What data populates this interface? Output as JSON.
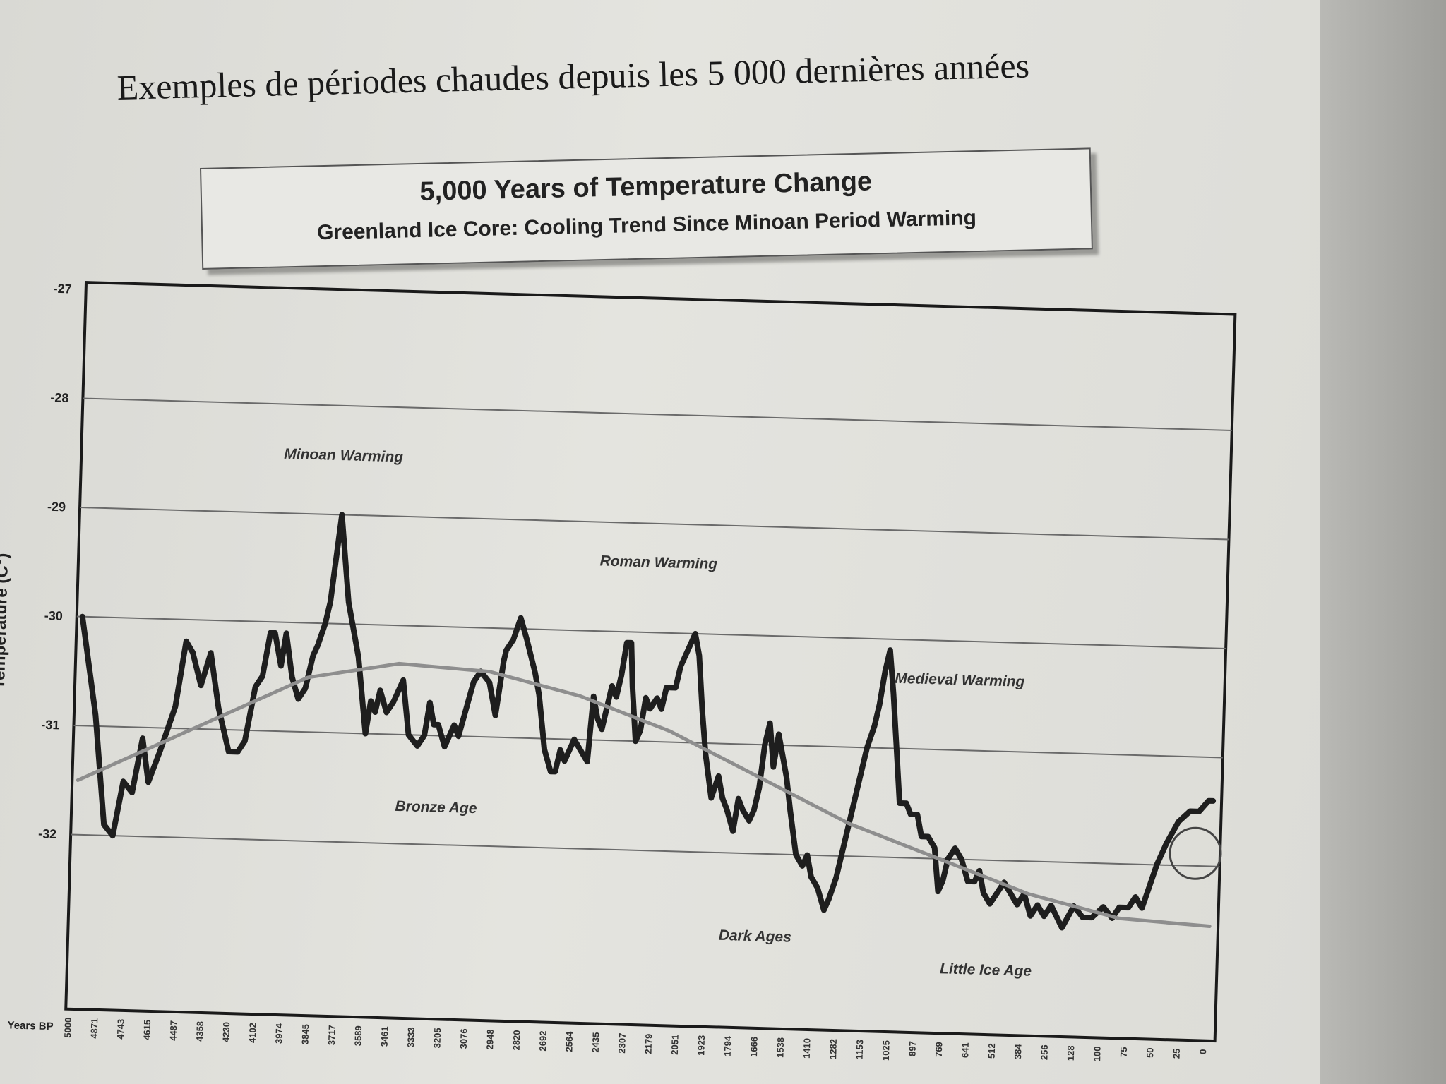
{
  "page": {
    "caption": "Exemples de périodes chaudes depuis les 5 000 dernières années"
  },
  "chart_data": {
    "type": "line",
    "title": "5,000 Years of Temperature Change",
    "subtitle": "Greenland Ice Core: Cooling Trend Since Minoan Period Warming",
    "ylabel": "Temperature (C°)",
    "xlabel": "Years BP",
    "ylim": [
      -32.5,
      -27
    ],
    "xlim": [
      5000,
      0
    ],
    "grid": true,
    "y_ticks": [
      "-27",
      "-28",
      "-29",
      "-30",
      "-31",
      "-32"
    ],
    "x_ticks": [
      "5000",
      "4871",
      "4743",
      "4615",
      "4487",
      "4358",
      "4230",
      "4102",
      "3974",
      "3845",
      "3717",
      "3589",
      "3461",
      "3333",
      "3205",
      "3076",
      "2948",
      "2820",
      "2692",
      "2564",
      "2435",
      "2307",
      "2179",
      "2051",
      "1923",
      "1794",
      "1666",
      "1538",
      "1410",
      "1282",
      "1153",
      "1025",
      "897",
      "769",
      "641",
      "512",
      "384",
      "256",
      "128",
      "100",
      "75",
      "50",
      "25",
      "0"
    ],
    "series": [
      {
        "values": [
          [
            5000,
            -30.0
          ],
          [
            4930,
            -30.9
          ],
          [
            4880,
            -31.9
          ],
          [
            4840,
            -32.0
          ],
          [
            4800,
            -31.5
          ],
          [
            4760,
            -31.6
          ],
          [
            4720,
            -31.1
          ],
          [
            4690,
            -31.5
          ],
          [
            4640,
            -31.2
          ],
          [
            4580,
            -30.8
          ],
          [
            4540,
            -30.2
          ],
          [
            4510,
            -30.3
          ],
          [
            4470,
            -30.6
          ],
          [
            4430,
            -30.3
          ],
          [
            4390,
            -30.8
          ],
          [
            4340,
            -31.2
          ],
          [
            4300,
            -31.2
          ],
          [
            4270,
            -31.1
          ],
          [
            4230,
            -30.6
          ],
          [
            4200,
            -30.5
          ],
          [
            4170,
            -30.1
          ],
          [
            4150,
            -30.1
          ],
          [
            4120,
            -30.4
          ],
          [
            4100,
            -30.1
          ],
          [
            4070,
            -30.5
          ],
          [
            4040,
            -30.7
          ],
          [
            4010,
            -30.6
          ],
          [
            3980,
            -30.3
          ],
          [
            3960,
            -30.2
          ],
          [
            3930,
            -30.0
          ],
          [
            3910,
            -29.8
          ],
          [
            3870,
            -29.0
          ],
          [
            3830,
            -29.8
          ],
          [
            3780,
            -30.3
          ],
          [
            3740,
            -31.0
          ],
          [
            3720,
            -30.7
          ],
          [
            3700,
            -30.8
          ],
          [
            3680,
            -30.6
          ],
          [
            3650,
            -30.8
          ],
          [
            3620,
            -30.7
          ],
          [
            3580,
            -30.5
          ],
          [
            3550,
            -31.0
          ],
          [
            3510,
            -31.1
          ],
          [
            3480,
            -31.0
          ],
          [
            3460,
            -30.7
          ],
          [
            3440,
            -30.9
          ],
          [
            3420,
            -30.9
          ],
          [
            3390,
            -31.1
          ],
          [
            3350,
            -30.9
          ],
          [
            3330,
            -31.0
          ],
          [
            3270,
            -30.5
          ],
          [
            3240,
            -30.4
          ],
          [
            3200,
            -30.5
          ],
          [
            3170,
            -30.8
          ],
          [
            3140,
            -30.3
          ],
          [
            3130,
            -30.2
          ],
          [
            3100,
            -30.1
          ],
          [
            3070,
            -29.9
          ],
          [
            3040,
            -30.1
          ],
          [
            3000,
            -30.4
          ],
          [
            2980,
            -30.6
          ],
          [
            2950,
            -31.1
          ],
          [
            2920,
            -31.3
          ],
          [
            2900,
            -31.3
          ],
          [
            2880,
            -31.1
          ],
          [
            2860,
            -31.2
          ],
          [
            2840,
            -31.1
          ],
          [
            2820,
            -31.0
          ],
          [
            2790,
            -31.1
          ],
          [
            2760,
            -31.2
          ],
          [
            2740,
            -30.6
          ],
          [
            2720,
            -30.8
          ],
          [
            2700,
            -30.9
          ],
          [
            2680,
            -30.7
          ],
          [
            2660,
            -30.5
          ],
          [
            2640,
            -30.6
          ],
          [
            2620,
            -30.4
          ],
          [
            2600,
            -30.1
          ],
          [
            2580,
            -30.1
          ],
          [
            2570,
            -30.5
          ],
          [
            2550,
            -31.0
          ],
          [
            2530,
            -30.9
          ],
          [
            2510,
            -30.6
          ],
          [
            2490,
            -30.7
          ],
          [
            2460,
            -30.6
          ],
          [
            2440,
            -30.7
          ],
          [
            2420,
            -30.5
          ],
          [
            2380,
            -30.5
          ],
          [
            2360,
            -30.3
          ],
          [
            2340,
            -30.2
          ],
          [
            2320,
            -30.1
          ],
          [
            2300,
            -30.0
          ],
          [
            2280,
            -30.2
          ],
          [
            2260,
            -30.7
          ],
          [
            2240,
            -31.1
          ],
          [
            2210,
            -31.5
          ],
          [
            2180,
            -31.3
          ],
          [
            2160,
            -31.5
          ],
          [
            2140,
            -31.6
          ],
          [
            2110,
            -31.8
          ],
          [
            2090,
            -31.5
          ],
          [
            2070,
            -31.6
          ],
          [
            2040,
            -31.7
          ],
          [
            2020,
            -31.6
          ],
          [
            2000,
            -31.4
          ],
          [
            1980,
            -31.0
          ],
          [
            1960,
            -30.8
          ],
          [
            1940,
            -31.2
          ],
          [
            1920,
            -30.9
          ],
          [
            1900,
            -31.1
          ],
          [
            1880,
            -31.3
          ],
          [
            1860,
            -31.6
          ],
          [
            1830,
            -32.0
          ],
          [
            1800,
            -32.1
          ],
          [
            1780,
            -32.0
          ],
          [
            1760,
            -32.2
          ],
          [
            1730,
            -32.3
          ],
          [
            1700,
            -32.5
          ],
          [
            1680,
            -32.4
          ],
          [
            1650,
            -32.2
          ],
          [
            1620,
            -31.9
          ],
          [
            1590,
            -31.6
          ],
          [
            1560,
            -31.3
          ],
          [
            1530,
            -31.0
          ],
          [
            1500,
            -30.8
          ],
          [
            1480,
            -30.6
          ],
          [
            1460,
            -30.3
          ],
          [
            1440,
            -30.1
          ],
          [
            1420,
            -30.5
          ],
          [
            1400,
            -31.0
          ],
          [
            1380,
            -31.5
          ],
          [
            1350,
            -31.5
          ],
          [
            1330,
            -31.6
          ],
          [
            1300,
            -31.6
          ],
          [
            1280,
            -31.8
          ],
          [
            1250,
            -31.8
          ],
          [
            1220,
            -31.9
          ],
          [
            1200,
            -32.3
          ],
          [
            1180,
            -32.2
          ],
          [
            1160,
            -32.0
          ],
          [
            1130,
            -31.9
          ],
          [
            1100,
            -32.0
          ],
          [
            1070,
            -32.2
          ],
          [
            1040,
            -32.2
          ],
          [
            1020,
            -32.1
          ],
          [
            1000,
            -32.3
          ],
          [
            970,
            -32.4
          ],
          [
            940,
            -32.3
          ],
          [
            910,
            -32.2
          ],
          [
            880,
            -32.3
          ],
          [
            850,
            -32.4
          ],
          [
            820,
            -32.3
          ],
          [
            790,
            -32.5
          ],
          [
            760,
            -32.4
          ],
          [
            730,
            -32.5
          ],
          [
            700,
            -32.4
          ],
          [
            650,
            -32.6
          ],
          [
            600,
            -32.4
          ],
          [
            560,
            -32.5
          ],
          [
            520,
            -32.5
          ],
          [
            470,
            -32.4
          ],
          [
            430,
            -32.5
          ],
          [
            400,
            -32.4
          ],
          [
            360,
            -32.4
          ],
          [
            330,
            -32.3
          ],
          [
            300,
            -32.4
          ],
          [
            270,
            -32.2
          ],
          [
            240,
            -32.0
          ],
          [
            200,
            -31.8
          ],
          [
            150,
            -31.6
          ],
          [
            100,
            -31.5
          ],
          [
            60,
            -31.5
          ],
          [
            20,
            -31.4
          ],
          [
            0,
            -31.4
          ]
        ]
      },
      {
        "values": [
          [
            5000,
            -31.5
          ],
          [
            4500,
            -31.0
          ],
          [
            4000,
            -30.5
          ],
          [
            3600,
            -30.35
          ],
          [
            3200,
            -30.4
          ],
          [
            2800,
            -30.6
          ],
          [
            2400,
            -30.9
          ],
          [
            2000,
            -31.3
          ],
          [
            1600,
            -31.7
          ],
          [
            1200,
            -32.0
          ],
          [
            800,
            -32.3
          ],
          [
            400,
            -32.5
          ],
          [
            0,
            -32.55
          ]
        ]
      }
    ],
    "annotations": [
      {
        "text": "Minoan Warming",
        "x": 3870,
        "y": -28.5
      },
      {
        "text": "Roman Warming",
        "x": 2470,
        "y": -29.4
      },
      {
        "text": "Medieval Warming",
        "x": 1130,
        "y": -30.4
      },
      {
        "text": "Bronze Age",
        "x": 3420,
        "y": -31.7
      },
      {
        "text": "Dark Ages",
        "x": 2000,
        "y": -32.8
      },
      {
        "text": "Little Ice Age",
        "x": 980,
        "y": -33.05
      }
    ]
  }
}
